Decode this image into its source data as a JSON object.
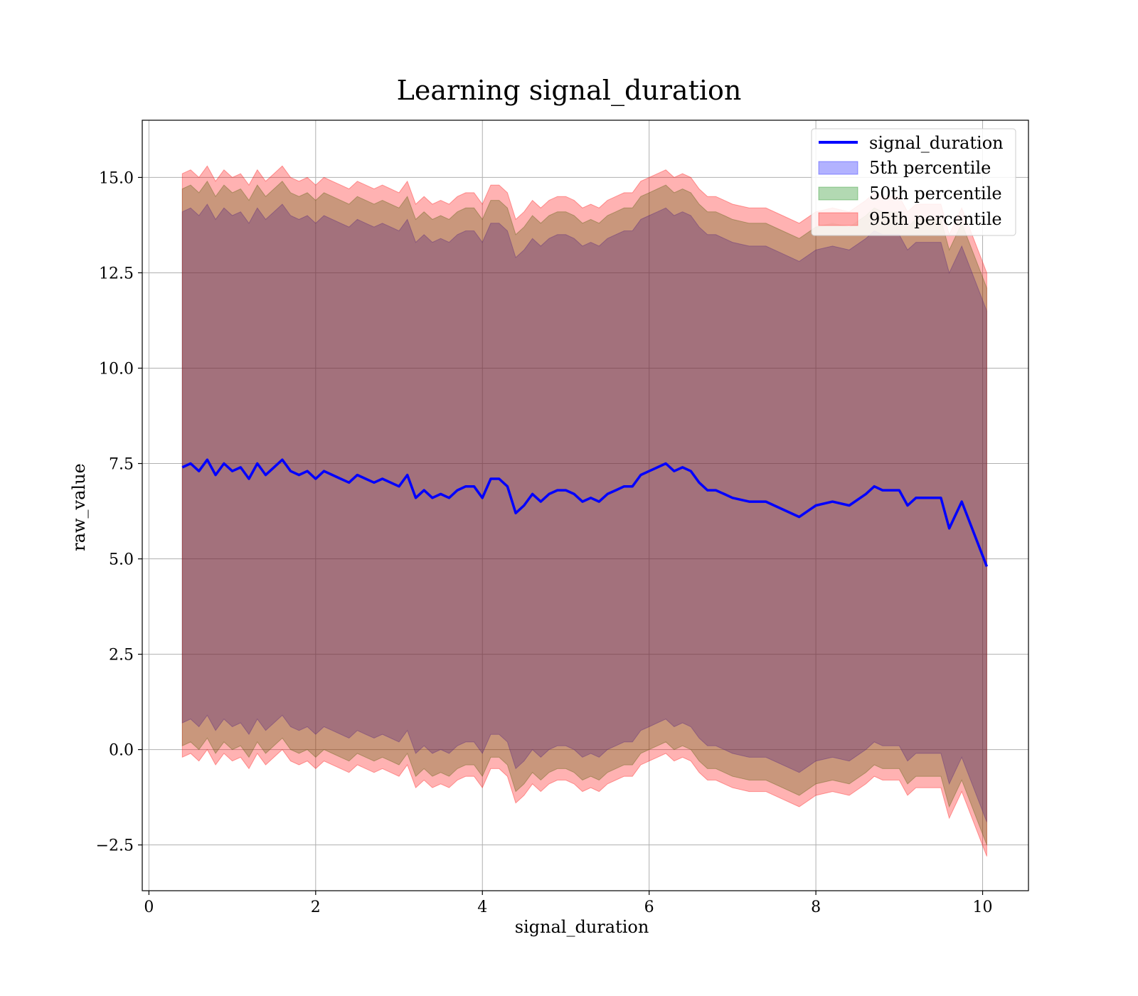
{
  "chart_data": {
    "type": "area",
    "title": "Learning signal_duration",
    "xlabel": "signal_duration",
    "ylabel": "raw_value",
    "xlim": [
      -0.08,
      10.55
    ],
    "ylim": [
      -3.7,
      16.5
    ],
    "xticks": [
      0,
      2,
      4,
      6,
      8,
      10
    ],
    "xtick_labels": [
      "0",
      "2",
      "4",
      "6",
      "8",
      "10"
    ],
    "yticks": [
      -2.5,
      0.0,
      2.5,
      5.0,
      7.5,
      10.0,
      12.5,
      15.0
    ],
    "ytick_labels": [
      "−2.5",
      "0.0",
      "2.5",
      "5.0",
      "7.5",
      "10.0",
      "12.5",
      "15.0"
    ],
    "grid": true,
    "legend_position": "top-right",
    "x": [
      0.4,
      0.5,
      0.6,
      0.7,
      0.8,
      0.9,
      1.0,
      1.1,
      1.2,
      1.3,
      1.4,
      1.5,
      1.6,
      1.7,
      1.8,
      1.9,
      2.0,
      2.1,
      2.2,
      2.3,
      2.4,
      2.5,
      2.6,
      2.7,
      2.8,
      2.9,
      3.0,
      3.1,
      3.2,
      3.3,
      3.4,
      3.5,
      3.6,
      3.7,
      3.8,
      3.9,
      4.0,
      4.1,
      4.2,
      4.3,
      4.4,
      4.5,
      4.6,
      4.7,
      4.8,
      4.9,
      5.0,
      5.1,
      5.2,
      5.3,
      5.4,
      5.5,
      5.6,
      5.7,
      5.8,
      5.9,
      6.0,
      6.1,
      6.2,
      6.3,
      6.4,
      6.5,
      6.6,
      6.7,
      6.8,
      6.9,
      7.0,
      7.2,
      7.4,
      7.6,
      7.8,
      8.0,
      8.2,
      8.4,
      8.6,
      8.7,
      8.8,
      9.0,
      9.1,
      9.2,
      9.4,
      9.5,
      9.6,
      9.75,
      10.05
    ],
    "series": [
      {
        "name": "signal_duration",
        "kind": "line",
        "color": "#0000ff",
        "values": [
          7.4,
          7.5,
          7.3,
          7.6,
          7.2,
          7.5,
          7.3,
          7.4,
          7.1,
          7.5,
          7.2,
          7.4,
          7.6,
          7.3,
          7.2,
          7.3,
          7.1,
          7.3,
          7.2,
          7.1,
          7.0,
          7.2,
          7.1,
          7.0,
          7.1,
          7.0,
          6.9,
          7.2,
          6.6,
          6.8,
          6.6,
          6.7,
          6.6,
          6.8,
          6.9,
          6.9,
          6.6,
          7.1,
          7.1,
          6.9,
          6.2,
          6.4,
          6.7,
          6.5,
          6.7,
          6.8,
          6.8,
          6.7,
          6.5,
          6.6,
          6.5,
          6.7,
          6.8,
          6.9,
          6.9,
          7.2,
          7.3,
          7.4,
          7.5,
          7.3,
          7.4,
          7.3,
          7.0,
          6.8,
          6.8,
          6.7,
          6.6,
          6.5,
          6.5,
          6.3,
          6.1,
          6.4,
          6.5,
          6.4,
          6.7,
          6.9,
          6.8,
          6.8,
          6.4,
          6.6,
          6.6,
          6.6,
          5.8,
          6.5,
          4.8
        ]
      },
      {
        "name": "5th percentile",
        "kind": "band",
        "color": "#0000ff",
        "lower": [
          0.7,
          0.8,
          0.6,
          0.9,
          0.5,
          0.8,
          0.6,
          0.7,
          0.4,
          0.8,
          0.5,
          0.7,
          0.9,
          0.6,
          0.5,
          0.6,
          0.4,
          0.6,
          0.5,
          0.4,
          0.3,
          0.5,
          0.4,
          0.3,
          0.4,
          0.3,
          0.2,
          0.5,
          -0.1,
          0.1,
          -0.1,
          0.0,
          -0.1,
          0.1,
          0.2,
          0.2,
          -0.1,
          0.4,
          0.4,
          0.2,
          -0.5,
          -0.3,
          0.0,
          -0.2,
          0.0,
          0.1,
          0.1,
          0.0,
          -0.2,
          -0.1,
          -0.2,
          0.0,
          0.1,
          0.2,
          0.2,
          0.5,
          0.6,
          0.7,
          0.8,
          0.6,
          0.7,
          0.6,
          0.3,
          0.1,
          0.1,
          0.0,
          -0.1,
          -0.2,
          -0.2,
          -0.4,
          -0.6,
          -0.3,
          -0.2,
          -0.3,
          0.0,
          0.2,
          0.1,
          0.1,
          -0.3,
          -0.1,
          -0.1,
          -0.1,
          -0.9,
          -0.2,
          -1.9
        ],
        "upper": [
          14.1,
          14.2,
          14.0,
          14.3,
          13.9,
          14.2,
          14.0,
          14.1,
          13.8,
          14.2,
          13.9,
          14.1,
          14.3,
          14.0,
          13.9,
          14.0,
          13.8,
          14.0,
          13.9,
          13.8,
          13.7,
          13.9,
          13.8,
          13.7,
          13.8,
          13.7,
          13.6,
          13.9,
          13.3,
          13.5,
          13.3,
          13.4,
          13.3,
          13.5,
          13.6,
          13.6,
          13.3,
          13.8,
          13.8,
          13.6,
          12.9,
          13.1,
          13.4,
          13.2,
          13.4,
          13.5,
          13.5,
          13.4,
          13.2,
          13.3,
          13.2,
          13.4,
          13.5,
          13.6,
          13.6,
          13.9,
          14.0,
          14.1,
          14.2,
          14.0,
          14.1,
          14.0,
          13.7,
          13.5,
          13.5,
          13.4,
          13.3,
          13.2,
          13.2,
          13.0,
          12.8,
          13.1,
          13.2,
          13.1,
          13.4,
          13.6,
          13.5,
          13.5,
          13.1,
          13.3,
          13.3,
          13.3,
          12.5,
          13.2,
          11.5
        ]
      },
      {
        "name": "50th percentile",
        "kind": "band",
        "color": "#008000",
        "lower": [
          0.1,
          0.2,
          0.0,
          0.3,
          -0.1,
          0.2,
          0.0,
          0.1,
          -0.2,
          0.2,
          -0.1,
          0.1,
          0.3,
          0.0,
          -0.1,
          0.0,
          -0.2,
          0.0,
          -0.1,
          -0.2,
          -0.3,
          -0.1,
          -0.2,
          -0.3,
          -0.2,
          -0.3,
          -0.4,
          -0.1,
          -0.7,
          -0.5,
          -0.7,
          -0.6,
          -0.7,
          -0.5,
          -0.4,
          -0.4,
          -0.7,
          -0.2,
          -0.2,
          -0.4,
          -1.1,
          -0.9,
          -0.6,
          -0.8,
          -0.6,
          -0.5,
          -0.5,
          -0.6,
          -0.8,
          -0.7,
          -0.8,
          -0.6,
          -0.5,
          -0.4,
          -0.4,
          -0.1,
          0.0,
          0.1,
          0.2,
          0.0,
          0.1,
          0.0,
          -0.3,
          -0.5,
          -0.5,
          -0.6,
          -0.7,
          -0.8,
          -0.8,
          -1.0,
          -1.2,
          -0.9,
          -0.8,
          -0.9,
          -0.6,
          -0.4,
          -0.5,
          -0.5,
          -0.9,
          -0.7,
          -0.7,
          -0.7,
          -1.5,
          -0.8,
          -2.5
        ],
        "upper": [
          14.7,
          14.8,
          14.6,
          14.9,
          14.5,
          14.8,
          14.6,
          14.7,
          14.4,
          14.8,
          14.5,
          14.7,
          14.9,
          14.6,
          14.5,
          14.6,
          14.4,
          14.6,
          14.5,
          14.4,
          14.3,
          14.5,
          14.4,
          14.3,
          14.4,
          14.3,
          14.2,
          14.5,
          13.9,
          14.1,
          13.9,
          14.0,
          13.9,
          14.1,
          14.2,
          14.2,
          13.9,
          14.4,
          14.4,
          14.2,
          13.5,
          13.7,
          14.0,
          13.8,
          14.0,
          14.1,
          14.1,
          14.0,
          13.8,
          13.9,
          13.8,
          14.0,
          14.1,
          14.2,
          14.2,
          14.5,
          14.6,
          14.7,
          14.8,
          14.6,
          14.7,
          14.6,
          14.3,
          14.1,
          14.1,
          14.0,
          13.9,
          13.8,
          13.8,
          13.6,
          13.4,
          13.7,
          13.8,
          13.7,
          14.0,
          14.2,
          14.1,
          14.1,
          13.7,
          13.9,
          13.9,
          13.9,
          13.1,
          13.8,
          12.1
        ]
      },
      {
        "name": "95th percentile",
        "kind": "band",
        "color": "#ff0000",
        "lower": [
          -0.2,
          -0.1,
          -0.3,
          0.0,
          -0.4,
          -0.1,
          -0.3,
          -0.2,
          -0.5,
          -0.1,
          -0.4,
          -0.2,
          0.0,
          -0.3,
          -0.4,
          -0.3,
          -0.5,
          -0.3,
          -0.4,
          -0.5,
          -0.6,
          -0.4,
          -0.5,
          -0.6,
          -0.5,
          -0.6,
          -0.7,
          -0.4,
          -1.0,
          -0.8,
          -1.0,
          -0.9,
          -1.0,
          -0.8,
          -0.7,
          -0.7,
          -1.0,
          -0.5,
          -0.5,
          -0.7,
          -1.4,
          -1.2,
          -0.9,
          -1.1,
          -0.9,
          -0.8,
          -0.8,
          -0.9,
          -1.1,
          -1.0,
          -1.1,
          -0.9,
          -0.8,
          -0.7,
          -0.7,
          -0.4,
          -0.3,
          -0.2,
          -0.1,
          -0.3,
          -0.2,
          -0.3,
          -0.6,
          -0.8,
          -0.8,
          -0.9,
          -1.0,
          -1.1,
          -1.1,
          -1.3,
          -1.5,
          -1.2,
          -1.1,
          -1.2,
          -0.9,
          -0.7,
          -0.8,
          -0.8,
          -1.2,
          -1.0,
          -1.0,
          -1.0,
          -1.8,
          -1.1,
          -2.8
        ],
        "upper": [
          15.1,
          15.2,
          15.0,
          15.3,
          14.9,
          15.2,
          15.0,
          15.1,
          14.8,
          15.2,
          14.9,
          15.1,
          15.3,
          15.0,
          14.9,
          15.0,
          14.8,
          15.0,
          14.9,
          14.8,
          14.7,
          14.9,
          14.8,
          14.7,
          14.8,
          14.7,
          14.6,
          14.9,
          14.3,
          14.5,
          14.3,
          14.4,
          14.3,
          14.5,
          14.6,
          14.6,
          14.3,
          14.8,
          14.8,
          14.6,
          13.9,
          14.1,
          14.4,
          14.2,
          14.4,
          14.5,
          14.5,
          14.4,
          14.2,
          14.3,
          14.2,
          14.4,
          14.5,
          14.6,
          14.6,
          14.9,
          15.0,
          15.1,
          15.2,
          15.0,
          15.1,
          15.0,
          14.7,
          14.5,
          14.5,
          14.4,
          14.3,
          14.2,
          14.2,
          14.0,
          13.8,
          14.1,
          14.2,
          14.1,
          14.4,
          14.6,
          14.5,
          14.5,
          14.1,
          14.3,
          14.3,
          14.3,
          13.5,
          14.2,
          12.5
        ]
      }
    ]
  }
}
